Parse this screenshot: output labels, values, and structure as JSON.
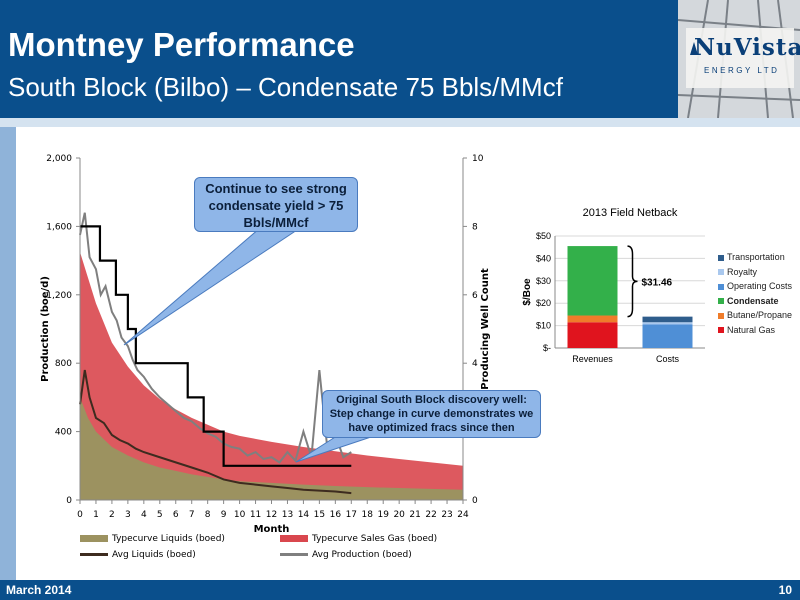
{
  "header": {
    "title": "Montney Performance",
    "subtitle": "South Block (Bilbo) – Condensate 75 Bbls/MMcf"
  },
  "logo": {
    "name": "NuVista",
    "tagline": "ENERGY LTD"
  },
  "colors": {
    "brand_blue": "#0a4f8c",
    "liquids_fill": "#9c9260",
    "gas_fill": "#d9474e",
    "avg_liquids": "#3d2b1f",
    "avg_production": "#7f7f7f",
    "well_count": "#000000"
  },
  "callouts": {
    "condensate": "Continue to see strong condensate yield > 75 Bbls/MMcf",
    "discovery": "Original South Block discovery well: Step change in curve demonstrates we have optimized fracs since then"
  },
  "footer": {
    "date": "March 2014",
    "page": "10"
  },
  "chart_data": [
    {
      "type": "area",
      "title": "",
      "xlabel": "Month",
      "ylabel": "Production (boe/d)",
      "y2label": "Producing Well Count",
      "xlim": [
        0,
        24
      ],
      "ylim": [
        0,
        2000
      ],
      "y2lim": [
        0,
        10
      ],
      "x_ticks": [
        0,
        1,
        2,
        3,
        4,
        5,
        6,
        7,
        8,
        9,
        10,
        11,
        12,
        13,
        14,
        15,
        16,
        17,
        18,
        19,
        20,
        21,
        22,
        23,
        24
      ],
      "y_ticks": [
        "0",
        "400",
        "800",
        "1,200",
        "1,600",
        "2,000"
      ],
      "y2_ticks": [
        "0",
        "2",
        "4",
        "6",
        "8",
        "10"
      ],
      "legend": [
        "Typecurve Liquids (boed)",
        "Typecurve Sales Gas (boed)",
        "Avg Liquids (boed)",
        "Avg Production (boed)"
      ],
      "series": [
        {
          "name": "Typecurve Liquids (boed)",
          "type": "area",
          "x": [
            0,
            0.5,
            1,
            2,
            3,
            4,
            5,
            6,
            7,
            8,
            9,
            10,
            12,
            14,
            16,
            18,
            20,
            22,
            24
          ],
          "values": [
            600,
            480,
            400,
            310,
            260,
            220,
            190,
            170,
            150,
            135,
            120,
            110,
            100,
            90,
            82,
            75,
            70,
            65,
            60
          ]
        },
        {
          "name": "Typecurve Sales Gas (boed)",
          "type": "area",
          "x": [
            0,
            0.5,
            1,
            2,
            3,
            4,
            5,
            6,
            7,
            8,
            9,
            10,
            12,
            14,
            16,
            18,
            20,
            22,
            24
          ],
          "values": [
            1450,
            1300,
            1150,
            920,
            780,
            670,
            590,
            530,
            480,
            440,
            400,
            375,
            340,
            310,
            285,
            260,
            240,
            220,
            200
          ]
        },
        {
          "name": "Avg Production (boed)",
          "type": "line",
          "x": [
            0,
            0.3,
            0.6,
            1,
            1.3,
            1.6,
            2,
            2.3,
            2.6,
            3,
            3.3,
            3.6,
            4,
            4.5,
            5,
            5.5,
            6,
            6.5,
            7,
            7.5,
            8,
            8.5,
            9,
            9.5,
            10,
            10.5,
            11,
            11.5,
            12,
            12.5,
            13,
            13.5,
            14,
            14.5,
            15,
            15.5,
            16,
            16.5,
            17
          ],
          "values": [
            1550,
            1680,
            1420,
            1350,
            1200,
            1250,
            1100,
            1050,
            950,
            900,
            820,
            760,
            720,
            650,
            600,
            560,
            520,
            480,
            460,
            420,
            390,
            370,
            330,
            310,
            300,
            260,
            280,
            240,
            250,
            220,
            280,
            230,
            400,
            250,
            760,
            300,
            380,
            250,
            280
          ]
        },
        {
          "name": "Avg Liquids (boed)",
          "type": "line",
          "x": [
            0,
            0.3,
            0.6,
            1,
            1.5,
            2,
            2.5,
            3,
            3.5,
            4,
            5,
            6,
            7,
            8,
            9,
            10,
            11,
            12,
            13,
            14,
            15,
            16,
            17
          ],
          "values": [
            560,
            760,
            600,
            480,
            450,
            380,
            350,
            330,
            300,
            280,
            250,
            220,
            190,
            160,
            120,
            100,
            90,
            80,
            70,
            60,
            55,
            50,
            40
          ]
        },
        {
          "name": "Producing Well Count",
          "type": "step",
          "axis": "y2",
          "x": [
            0,
            1.25,
            2.25,
            3,
            3.5,
            6.75,
            7.75,
            9,
            17
          ],
          "values": [
            8,
            7,
            6,
            5,
            4,
            3,
            2,
            1,
            1
          ]
        }
      ]
    },
    {
      "type": "bar",
      "title": "2013 Field Netback",
      "ylabel": "$/Boe",
      "categories": [
        "Revenues",
        "Costs"
      ],
      "ylim": [
        0,
        50
      ],
      "y_ticks": [
        "$-",
        "$10",
        "$20",
        "$30",
        "$40",
        "$50"
      ],
      "annotation": "$31.46",
      "legend": [
        "Transportation",
        "Royalty",
        "Operating Costs",
        "Condensate",
        "Butane/Propane",
        "Natural Gas"
      ],
      "legend_bold": [
        "Condensate"
      ],
      "series": [
        {
          "name": "Natural Gas",
          "color": "#e0141e",
          "values": [
            11.5,
            0
          ]
        },
        {
          "name": "Butane/Propane",
          "color": "#ef7c2a",
          "values": [
            3,
            0
          ]
        },
        {
          "name": "Condensate",
          "color": "#33b04a",
          "values": [
            31,
            0
          ]
        },
        {
          "name": "Operating Costs",
          "color": "#4f8fd6",
          "values": [
            0,
            10.5
          ]
        },
        {
          "name": "Royalty",
          "color": "#a9c8ee",
          "values": [
            0,
            1
          ]
        },
        {
          "name": "Transportation",
          "color": "#2f5d8c",
          "values": [
            0,
            2.5
          ]
        }
      ]
    }
  ]
}
